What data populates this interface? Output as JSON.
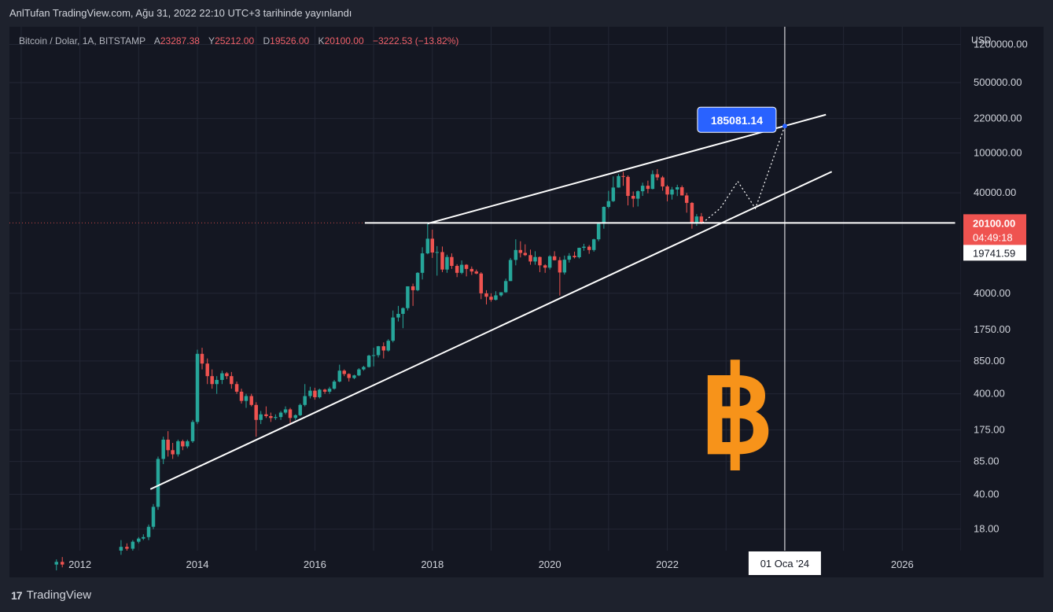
{
  "header": {
    "publish_text": "AnlTufan TradingView.com, Ağu 31, 2022 22:10 UTC+3 tarihinde yayınlandı"
  },
  "legend": {
    "symbol": "Bitcoin / Dolar, 1A, BITSTAMP",
    "open_label": "A",
    "open_value": "23287.38",
    "high_label": "Y",
    "high_value": "25212.00",
    "low_label": "D",
    "low_value": "19526.00",
    "close_label": "K",
    "close_value": "20100.00",
    "change": "−3222.53 (−13.82%)"
  },
  "axis": {
    "currency": "USD",
    "price_badge": "20100.00",
    "countdown_badge": "04:49:18",
    "crosshair_price_badge": "19741.59",
    "crosshair_date_badge": "01 Oca '24",
    "target_label": "185081.14"
  },
  "branding": {
    "footer_logo_mark": "17",
    "footer_logo_text": "TradingView"
  },
  "colors": {
    "up": "#26a69a",
    "down": "#ef5350",
    "target_label_bg": "#2962ff",
    "bitcoin_orange": "#f7931a",
    "background": "#141722"
  },
  "chart_data": {
    "type": "candlestick",
    "timeframe": "1M",
    "y_scale": "log",
    "ylim": [
      11,
      1800000
    ],
    "x_range": [
      2010.8,
      2027.0
    ],
    "x_tick_labels": [
      "2012",
      "2014",
      "2016",
      "2018",
      "2020",
      "2022",
      "2026"
    ],
    "x_ticks": [
      2012,
      2014,
      2016,
      2018,
      2020,
      2022,
      2026
    ],
    "y_tick_labels": [
      "1200000.00",
      "500000.00",
      "220000.00",
      "100000.00",
      "40000.00",
      "4000.00",
      "1750.00",
      "850.00",
      "400.00",
      "175.00",
      "85.00",
      "40.00",
      "18.00"
    ],
    "y_ticks": [
      1200000,
      500000,
      220000,
      100000,
      40000,
      4000,
      1750,
      850,
      400,
      175,
      85,
      40,
      18
    ],
    "grid": true,
    "candles": [
      [
        2011.6,
        8,
        9,
        7,
        8.5
      ],
      [
        2011.7,
        8.5,
        9.5,
        7.5,
        8
      ],
      [
        2012.7,
        11,
        14,
        10,
        12
      ],
      [
        2012.8,
        12,
        13,
        11,
        11.5
      ],
      [
        2012.9,
        11.5,
        14,
        11,
        13.5
      ],
      [
        2013.0,
        13.5,
        15,
        13,
        14.5
      ],
      [
        2013.08,
        14.5,
        16,
        14,
        15
      ],
      [
        2013.17,
        15,
        20,
        14,
        19
      ],
      [
        2013.25,
        19,
        32,
        18,
        30
      ],
      [
        2013.33,
        30,
        95,
        28,
        90
      ],
      [
        2013.42,
        90,
        150,
        80,
        140
      ],
      [
        2013.5,
        140,
        170,
        95,
        110
      ],
      [
        2013.58,
        110,
        130,
        90,
        100
      ],
      [
        2013.67,
        100,
        140,
        95,
        135
      ],
      [
        2013.75,
        135,
        140,
        110,
        120
      ],
      [
        2013.83,
        120,
        140,
        115,
        135
      ],
      [
        2013.92,
        135,
        220,
        130,
        210
      ],
      [
        2014.0,
        210,
        1100,
        200,
        1000
      ],
      [
        2014.08,
        1000,
        1150,
        700,
        800
      ],
      [
        2014.17,
        800,
        900,
        500,
        600
      ],
      [
        2014.25,
        600,
        700,
        450,
        500
      ],
      [
        2014.33,
        500,
        600,
        400,
        550
      ],
      [
        2014.42,
        550,
        680,
        500,
        640
      ],
      [
        2014.5,
        640,
        660,
        560,
        600
      ],
      [
        2014.58,
        600,
        660,
        450,
        500
      ],
      [
        2014.67,
        500,
        530,
        400,
        420
      ],
      [
        2014.75,
        420,
        450,
        320,
        340
      ],
      [
        2014.83,
        340,
        400,
        290,
        380
      ],
      [
        2014.92,
        380,
        400,
        300,
        310
      ],
      [
        2015.0,
        310,
        330,
        150,
        220
      ],
      [
        2015.08,
        220,
        270,
        200,
        250
      ],
      [
        2015.17,
        250,
        300,
        230,
        240
      ],
      [
        2015.25,
        240,
        260,
        210,
        230
      ],
      [
        2015.33,
        230,
        250,
        220,
        235
      ],
      [
        2015.42,
        235,
        270,
        220,
        260
      ],
      [
        2015.5,
        260,
        300,
        250,
        280
      ],
      [
        2015.58,
        280,
        290,
        200,
        230
      ],
      [
        2015.67,
        230,
        250,
        220,
        245
      ],
      [
        2015.75,
        245,
        320,
        240,
        310
      ],
      [
        2015.83,
        310,
        500,
        300,
        380
      ],
      [
        2015.92,
        380,
        470,
        360,
        430
      ],
      [
        2016.0,
        430,
        460,
        350,
        370
      ],
      [
        2016.08,
        370,
        450,
        360,
        440
      ],
      [
        2016.17,
        440,
        450,
        400,
        420
      ],
      [
        2016.25,
        420,
        470,
        400,
        450
      ],
      [
        2016.33,
        450,
        550,
        440,
        530
      ],
      [
        2016.42,
        530,
        780,
        520,
        680
      ],
      [
        2016.5,
        680,
        700,
        600,
        630
      ],
      [
        2016.58,
        630,
        640,
        530,
        575
      ],
      [
        2016.67,
        575,
        620,
        560,
        610
      ],
      [
        2016.75,
        610,
        720,
        600,
        700
      ],
      [
        2016.83,
        700,
        760,
        680,
        740
      ],
      [
        2016.92,
        740,
        980,
        730,
        960
      ],
      [
        2017.0,
        960,
        1150,
        750,
        970
      ],
      [
        2017.08,
        970,
        1200,
        920,
        1190
      ],
      [
        2017.17,
        1190,
        1300,
        900,
        1080
      ],
      [
        2017.25,
        1080,
        1400,
        1050,
        1350
      ],
      [
        2017.33,
        1350,
        2700,
        1300,
        2300
      ],
      [
        2017.42,
        2300,
        3000,
        2100,
        2500
      ],
      [
        2017.5,
        2500,
        2900,
        1800,
        2850
      ],
      [
        2017.58,
        2850,
        4700,
        2700,
        4700
      ],
      [
        2017.67,
        4700,
        5000,
        3000,
        4300
      ],
      [
        2017.75,
        4300,
        6500,
        4200,
        6400
      ],
      [
        2017.83,
        6400,
        11500,
        5500,
        10000
      ],
      [
        2017.92,
        10000,
        19800,
        9800,
        14000
      ],
      [
        2018.0,
        14000,
        17200,
        9000,
        10200
      ],
      [
        2018.08,
        10200,
        11800,
        6000,
        10300
      ],
      [
        2018.17,
        10300,
        11700,
        6500,
        6900
      ],
      [
        2018.25,
        6900,
        9700,
        6400,
        9200
      ],
      [
        2018.33,
        9200,
        10000,
        7000,
        7500
      ],
      [
        2018.42,
        7500,
        7800,
        5800,
        6400
      ],
      [
        2018.5,
        6400,
        8500,
        6200,
        7700
      ],
      [
        2018.58,
        7700,
        7800,
        5900,
        7000
      ],
      [
        2018.67,
        7000,
        7400,
        6100,
        6600
      ],
      [
        2018.75,
        6600,
        6900,
        6200,
        6300
      ],
      [
        2018.83,
        6300,
        6500,
        3500,
        4000
      ],
      [
        2018.92,
        4000,
        4300,
        3100,
        3700
      ],
      [
        2019.0,
        3700,
        4000,
        3300,
        3450
      ],
      [
        2019.08,
        3450,
        4200,
        3400,
        3820
      ],
      [
        2019.17,
        3820,
        4100,
        3700,
        4100
      ],
      [
        2019.25,
        4100,
        5600,
        4050,
        5300
      ],
      [
        2019.33,
        5300,
        9000,
        5300,
        8600
      ],
      [
        2019.42,
        8600,
        13800,
        7600,
        10800
      ],
      [
        2019.5,
        10800,
        13200,
        9100,
        10100
      ],
      [
        2019.58,
        10100,
        12300,
        9400,
        9600
      ],
      [
        2019.67,
        9600,
        10900,
        7700,
        8300
      ],
      [
        2019.75,
        8300,
        10500,
        7700,
        9200
      ],
      [
        2019.83,
        9200,
        9300,
        6500,
        7600
      ],
      [
        2019.92,
        7600,
        7800,
        6400,
        7200
      ],
      [
        2020.0,
        7200,
        9600,
        6900,
        9350
      ],
      [
        2020.08,
        9350,
        10500,
        8500,
        8550
      ],
      [
        2020.17,
        8550,
        9200,
        3800,
        6450
      ],
      [
        2020.25,
        6450,
        9500,
        6150,
        8650
      ],
      [
        2020.33,
        8650,
        10050,
        8100,
        9450
      ],
      [
        2020.42,
        9450,
        10400,
        8900,
        9150
      ],
      [
        2020.5,
        9150,
        11400,
        8900,
        11350
      ],
      [
        2020.58,
        11350,
        12450,
        10600,
        11650
      ],
      [
        2020.67,
        11650,
        12100,
        9900,
        10800
      ],
      [
        2020.75,
        10800,
        14000,
        10400,
        13800
      ],
      [
        2020.83,
        13800,
        19900,
        13200,
        19700
      ],
      [
        2020.92,
        19700,
        29300,
        17600,
        28990
      ],
      [
        2021.0,
        28990,
        41900,
        28100,
        33100
      ],
      [
        2021.08,
        33100,
        58300,
        32400,
        45200
      ],
      [
        2021.17,
        45200,
        61700,
        45000,
        58800
      ],
      [
        2021.25,
        58800,
        64800,
        47000,
        57700
      ],
      [
        2021.33,
        57700,
        59600,
        30000,
        37300
      ],
      [
        2021.42,
        37300,
        41300,
        28800,
        35000
      ],
      [
        2021.5,
        35000,
        42400,
        29300,
        41500
      ],
      [
        2021.58,
        41500,
        50500,
        37300,
        47100
      ],
      [
        2021.67,
        47100,
        52900,
        39600,
        43800
      ],
      [
        2021.75,
        43800,
        67000,
        43300,
        61300
      ],
      [
        2021.83,
        61300,
        69000,
        53300,
        57000
      ],
      [
        2021.92,
        57000,
        59000,
        42000,
        46300
      ],
      [
        2022.0,
        46300,
        47900,
        32900,
        38500
      ],
      [
        2022.08,
        38500,
        45800,
        34300,
        43200
      ],
      [
        2022.17,
        43200,
        48200,
        37200,
        45500
      ],
      [
        2022.25,
        45500,
        47400,
        37600,
        37700
      ],
      [
        2022.33,
        37700,
        40000,
        25400,
        31800
      ],
      [
        2022.42,
        31800,
        32400,
        17600,
        19900
      ],
      [
        2022.5,
        19900,
        24600,
        18800,
        23300
      ],
      [
        2022.58,
        23300,
        25200,
        19500,
        20100
      ]
    ],
    "trendlines": [
      {
        "from": [
          2017.92,
          19800
        ],
        "to": [
          2024.7,
          240000
        ]
      },
      {
        "from": [
          2013.2,
          45
        ],
        "to": [
          2024.8,
          65000
        ]
      },
      {
        "from": [
          2016.85,
          20100
        ],
        "to": [
          2026.9,
          20100
        ]
      }
    ],
    "projection": [
      [
        2022.6,
        20100
      ],
      [
        2022.9,
        28000
      ],
      [
        2023.2,
        52000
      ],
      [
        2023.5,
        28000
      ],
      [
        2024.0,
        185081.14
      ]
    ],
    "target": {
      "x": 2024.0,
      "y": 185081.14
    },
    "crosshair": {
      "x": 2024.0,
      "y": 19741.59
    },
    "last_price": 20100.0
  }
}
